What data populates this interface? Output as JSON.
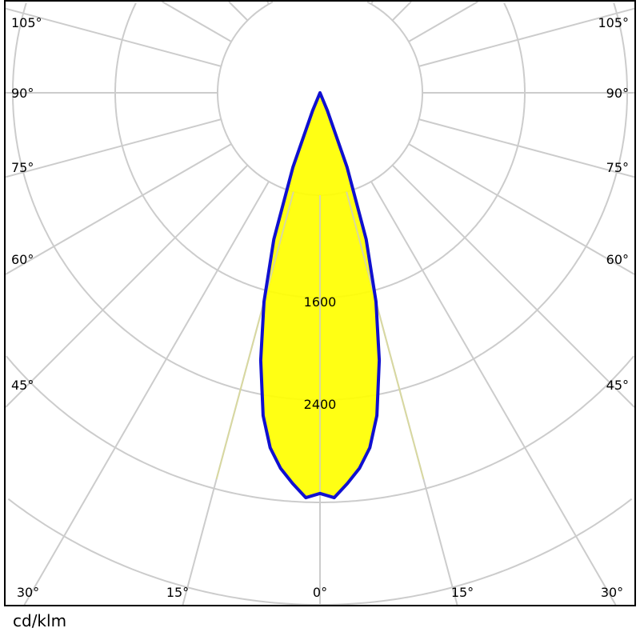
{
  "chart_data": {
    "type": "polar",
    "unit_label": "cd/klm",
    "ring_values": [
      800,
      1600,
      2400,
      3200,
      4000
    ],
    "ring_labels": [
      "1600",
      "2400"
    ],
    "angle_labels_bottom": [
      "30°",
      "15°",
      "0°",
      "15°",
      "30°"
    ],
    "angle_labels_sides": [
      "45°",
      "60°",
      "75°",
      "90°",
      "105°"
    ],
    "grid": true,
    "series": [
      {
        "angles_deg": [
          0,
          2,
          4,
          6,
          8,
          10,
          12.5,
          15,
          17.5,
          20,
          22.5,
          25
        ],
        "values": [
          3130,
          3165,
          3060,
          2950,
          2800,
          2560,
          2140,
          1690,
          1200,
          620,
          150,
          0
        ],
        "symmetric": true
      }
    ],
    "colors": {
      "fill": "#ffff00",
      "line": "#1010d0",
      "grid": "#cccccc"
    }
  }
}
